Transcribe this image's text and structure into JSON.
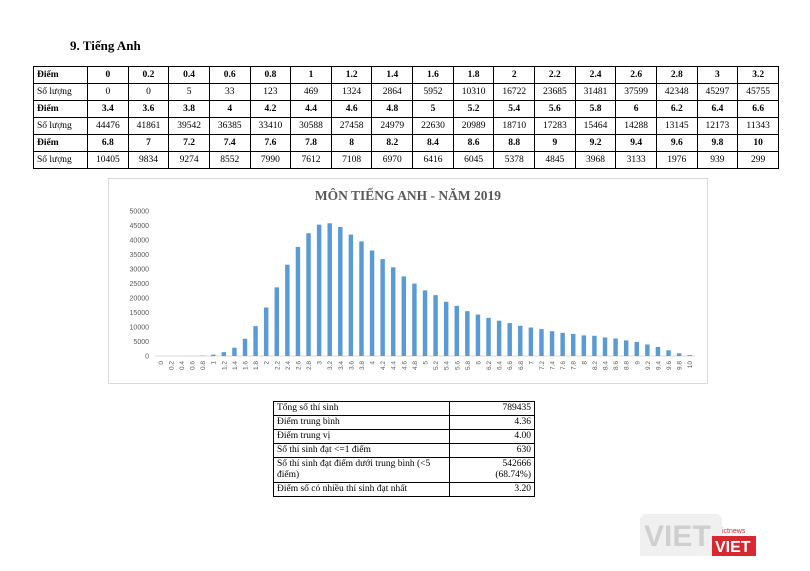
{
  "heading": "9.  Tiếng Anh",
  "table": {
    "row_label_score": "Điểm",
    "row_label_count": "Số lượng",
    "blocks": [
      {
        "scores": [
          "0",
          "0.2",
          "0.4",
          "0.6",
          "0.8",
          "1",
          "1.2",
          "1.4",
          "1.6",
          "1.8",
          "2",
          "2.2",
          "2.4",
          "2.6",
          "2.8",
          "3",
          "3.2"
        ],
        "counts": [
          "0",
          "0",
          "5",
          "33",
          "123",
          "469",
          "1324",
          "2864",
          "5952",
          "10310",
          "16722",
          "23685",
          "31481",
          "37599",
          "42348",
          "45297",
          "45755"
        ]
      },
      {
        "scores": [
          "3.4",
          "3.6",
          "3.8",
          "4",
          "4.2",
          "4.4",
          "4.6",
          "4.8",
          "5",
          "5.2",
          "5.4",
          "5.6",
          "5.8",
          "6",
          "6.2",
          "6.4",
          "6.6"
        ],
        "counts": [
          "44476",
          "41861",
          "39542",
          "36385",
          "33410",
          "30588",
          "27458",
          "24979",
          "22630",
          "20989",
          "18710",
          "17283",
          "15464",
          "14288",
          "13145",
          "12173",
          "11343"
        ]
      },
      {
        "scores": [
          "6.8",
          "7",
          "7.2",
          "7.4",
          "7.6",
          "7.8",
          "8",
          "8.2",
          "8.4",
          "8.6",
          "8.8",
          "9",
          "9.2",
          "9.4",
          "9.6",
          "9.8",
          "10"
        ],
        "counts": [
          "10405",
          "9834",
          "9274",
          "8552",
          "7990",
          "7612",
          "7108",
          "6970",
          "6416",
          "6045",
          "5378",
          "4845",
          "3968",
          "3133",
          "1976",
          "939",
          "299"
        ]
      }
    ]
  },
  "chart_data": {
    "type": "bar",
    "title": "MÔN TIẾNG ANH - NĂM 2019",
    "xlabel": "",
    "ylabel": "",
    "ylim": [
      0,
      50000
    ],
    "yticks": [
      0,
      5000,
      10000,
      15000,
      20000,
      25000,
      30000,
      35000,
      40000,
      45000,
      50000
    ],
    "grid": false,
    "legend": "none",
    "bar_color": "#5b9bd5",
    "categories": [
      "0",
      "0.2",
      "0.4",
      "0.6",
      "0.8",
      "1",
      "1.2",
      "1.4",
      "1.6",
      "1.8",
      "2",
      "2.2",
      "2.4",
      "2.6",
      "2.8",
      "3",
      "3.2",
      "3.4",
      "3.6",
      "3.8",
      "4",
      "4.2",
      "4.4",
      "4.6",
      "4.8",
      "5",
      "5.2",
      "5.4",
      "5.6",
      "5.8",
      "6",
      "6.2",
      "6.4",
      "6.6",
      "6.8",
      "7",
      "7.2",
      "7.4",
      "7.6",
      "7.8",
      "8",
      "8.2",
      "8.4",
      "8.6",
      "8.8",
      "9",
      "9.2",
      "9.4",
      "9.6",
      "9.8",
      "10"
    ],
    "values": [
      0,
      0,
      5,
      33,
      123,
      469,
      1324,
      2864,
      5952,
      10310,
      16722,
      23685,
      31481,
      37599,
      42348,
      45297,
      45755,
      44476,
      41861,
      39542,
      36385,
      33410,
      30588,
      27458,
      24979,
      22630,
      20989,
      18710,
      17283,
      15464,
      14288,
      13145,
      12173,
      11343,
      10405,
      9834,
      9274,
      8552,
      7990,
      7612,
      7108,
      6970,
      6416,
      6045,
      5378,
      4845,
      3968,
      3133,
      1976,
      939,
      299
    ]
  },
  "stats": [
    {
      "label": "Tổng số thí sinh",
      "value": "789435"
    },
    {
      "label": "Điểm trung bình",
      "value": "4.36"
    },
    {
      "label": "Điểm trung vị",
      "value": "4.00"
    },
    {
      "label": "Số thí sinh đạt <=1 điểm",
      "value": "630"
    },
    {
      "label": "Số thí sinh đạt điểm dưới trung bình (<5 điểm)",
      "value": "542666",
      "value2": "(68.74%)"
    },
    {
      "label": "Điểm số có nhiều thí sinh đạt nhất",
      "value": "3.20"
    }
  ],
  "watermark": {
    "main": "VIET",
    "sub": "VIET",
    "small": "ictnews",
    "color_main": "#d9d9d9",
    "color_accent": "#d7282f"
  }
}
